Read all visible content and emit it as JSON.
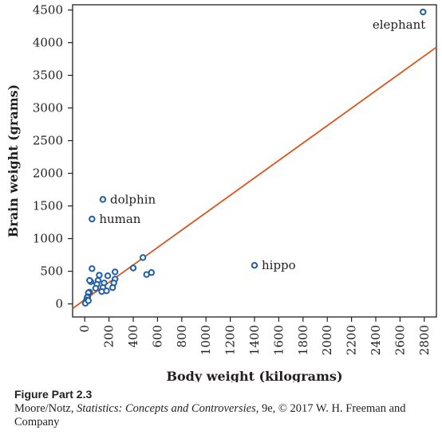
{
  "chart_data": {
    "type": "scatter",
    "xlabel": "Body weight (kilograms)",
    "ylabel": "Brain weight (grams)",
    "xlim": [
      -100,
      2900
    ],
    "ylim": [
      -200,
      4580
    ],
    "xticks": [
      0,
      200,
      400,
      600,
      800,
      1000,
      1200,
      1400,
      1600,
      1800,
      2000,
      2200,
      2400,
      2600,
      2800
    ],
    "yticks": [
      0,
      500,
      1000,
      1500,
      2000,
      2500,
      3000,
      3500,
      4000,
      4500
    ],
    "grid": false,
    "marker_color": "#1f5fa8",
    "line_color": "#d9541e",
    "regression_line": {
      "x": [
        -100,
        2900
      ],
      "y": [
        -70,
        3930
      ]
    },
    "series": [
      {
        "values": [
          {
            "x": 2790,
            "y": 4470,
            "label": "elephant"
          },
          {
            "x": 150,
            "y": 1600,
            "label": "dolphin"
          },
          {
            "x": 60,
            "y": 1300,
            "label": "human"
          },
          {
            "x": 1400,
            "y": 590,
            "label": "hippo"
          },
          {
            "x": 480,
            "y": 710
          },
          {
            "x": 550,
            "y": 480
          },
          {
            "x": 510,
            "y": 450
          },
          {
            "x": 400,
            "y": 550
          },
          {
            "x": 250,
            "y": 490
          },
          {
            "x": 250,
            "y": 380
          },
          {
            "x": 240,
            "y": 320
          },
          {
            "x": 230,
            "y": 250
          },
          {
            "x": 190,
            "y": 430
          },
          {
            "x": 160,
            "y": 320
          },
          {
            "x": 150,
            "y": 250
          },
          {
            "x": 140,
            "y": 190
          },
          {
            "x": 180,
            "y": 200
          },
          {
            "x": 120,
            "y": 440
          },
          {
            "x": 110,
            "y": 360
          },
          {
            "x": 100,
            "y": 300
          },
          {
            "x": 90,
            "y": 240
          },
          {
            "x": 60,
            "y": 540
          },
          {
            "x": 50,
            "y": 340
          },
          {
            "x": 40,
            "y": 360
          },
          {
            "x": 40,
            "y": 180
          },
          {
            "x": 30,
            "y": 170
          },
          {
            "x": 25,
            "y": 110
          },
          {
            "x": 20,
            "y": 100
          },
          {
            "x": 15,
            "y": 60
          },
          {
            "x": 10,
            "y": 30
          },
          {
            "x": 5,
            "y": 10
          },
          {
            "x": 30,
            "y": 50
          }
        ]
      }
    ]
  },
  "caption": {
    "title": "Figure Part 2.3",
    "credit_prefix": "Moore/Notz, ",
    "credit_title": "Statistics: Concepts and Controversies",
    "credit_suffix": ", 9e, © 2017 W. H. Freeman and Company"
  }
}
